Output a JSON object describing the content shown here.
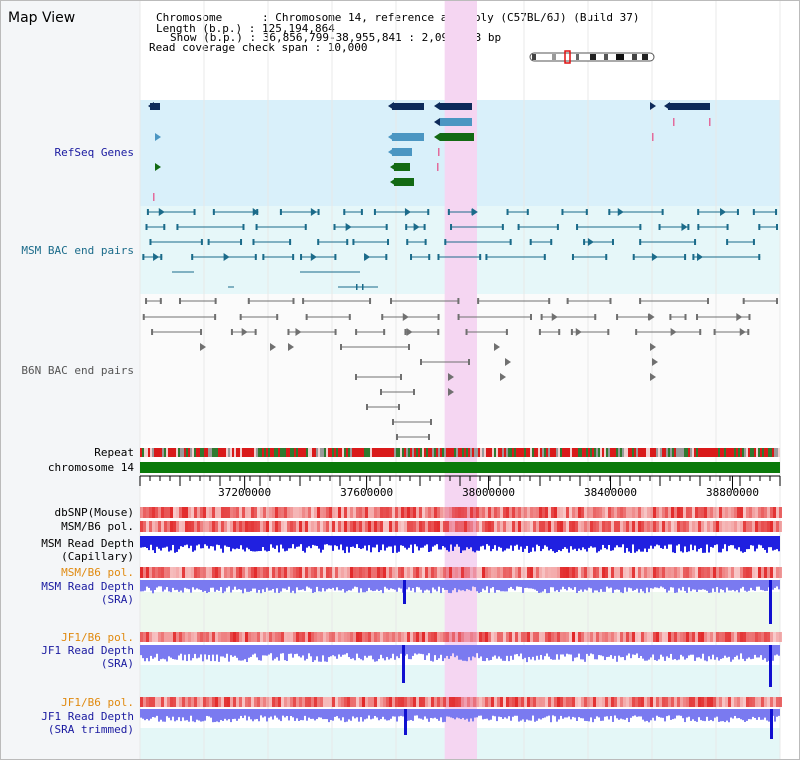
{
  "view_title": "Map View",
  "info": {
    "chromosome_label": "Chromosome      : Chromosome 14, reference assembly (C57BL/6J) (Build 37)",
    "length_label": "Length (b.p.) : 125,194,864",
    "show_label": "Show (b.p.) : 36,856,799-38,955,841 : 2,099,043 bp",
    "coverage_label": "Read coverage check span : 10,000"
  },
  "tracks": {
    "refseq": "RefSeq Genes",
    "msm_bac": "MSM BAC end pairs",
    "b6n_bac": "B6N BAC end pairs",
    "repeat": "Repeat",
    "chromosome": "chromosome 14",
    "dbsnp": "dbSNP(Mouse)",
    "msm_b6_pol_1": "MSM/B6 pol.",
    "msm_depth_cap_1": "MSM Read Depth",
    "msm_depth_cap_2": "(Capillary)",
    "msm_b6_pol_2": "MSM/B6 pol.",
    "msm_depth_sra_1": "MSM Read Depth",
    "msm_depth_sra_2": "(SRA)",
    "jf1_b6_pol_1": "JF1/B6 pol.",
    "jf1_depth_sra_1": "JF1 Read Depth",
    "jf1_depth_sra_2": "(SRA)",
    "jf1_b6_pol_2": "JF1/B6 pol.",
    "jf1_depth_trim_1": "JF1 Read Depth",
    "jf1_depth_trim_2": "(SRA trimmed)"
  },
  "axis": {
    "start_bp": 36856799,
    "end_bp": 38955841,
    "ticks": [
      "37200000",
      "37600000",
      "38000000",
      "38400000",
      "38800000"
    ]
  },
  "highlight_bp": [
    37856000,
    37962000
  ],
  "colors": {
    "refseq_bg": "#d9f0fa",
    "msm_bg": "#e6f7f9",
    "highlight": "#f5d6f2",
    "gene_navy": "#0d2a5a",
    "gene_blue": "#4b96c2",
    "gene_green": "#136a13",
    "bac_teal": "#1b6b8a",
    "bac_gray": "#707070",
    "chrom_green": "#0a7a0a",
    "depth_blue": "#2020e0",
    "depth_light": "#7a7af0"
  }
}
